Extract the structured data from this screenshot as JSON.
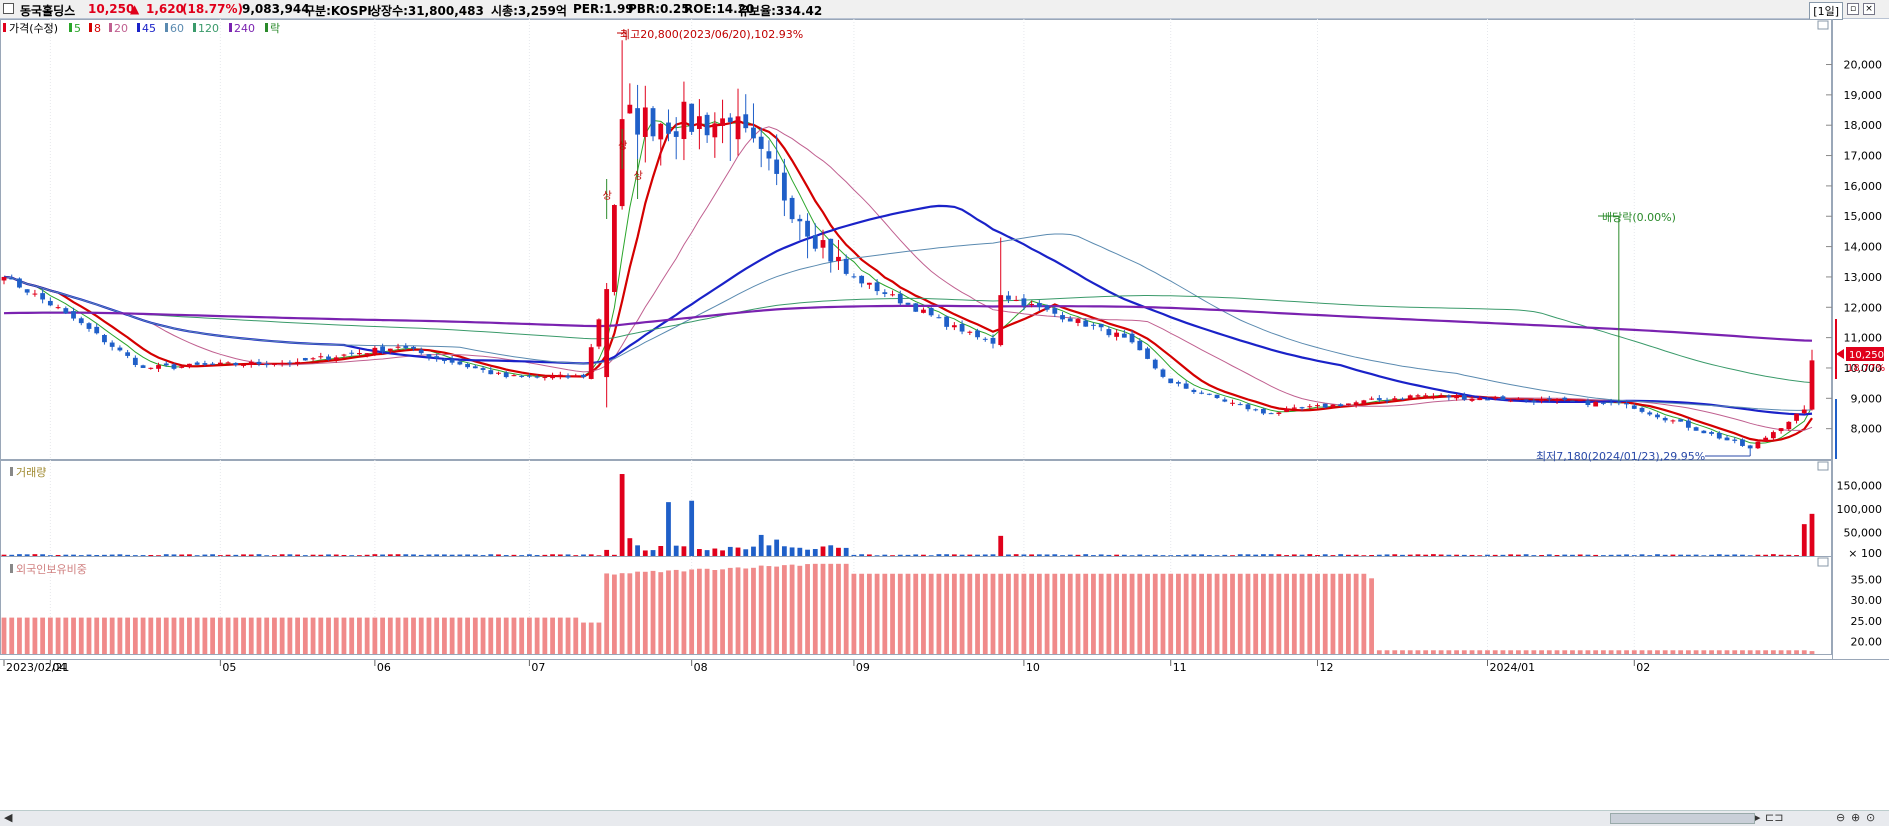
{
  "header": {
    "stock_name": "동국홀딩스",
    "price": "10,250",
    "change_arrow": "▲",
    "change": "1,620",
    "change_pct": "(18.77%)",
    "volume": "9,083,944",
    "market": "구분:KOSPI",
    "shares": "상장수:31,800,483",
    "market_cap": "시총:3,259억",
    "per": "PER:1.99",
    "pbr": "PBR:0.25",
    "roe": "ROE:14.20",
    "reserve": "유보율:334.42",
    "period": "[1일]"
  },
  "colors": {
    "up": "#e0001b",
    "down": "#1f5fc8",
    "ma5": "#2aa52a",
    "ma8": "#d40000",
    "ma20": "#c06090",
    "ma45": "#1a22c8",
    "ma60": "#5a8ab0",
    "ma120": "#3a9a6a",
    "ma240": "#7a22b0",
    "foreign": "#f08a8a",
    "dividend": "#2a8a2a"
  },
  "legend": {
    "price": {
      "label": "가격(수정)",
      "color": "#e0001b"
    },
    "ma": [
      {
        "label": "5",
        "color": "#2aa52a"
      },
      {
        "label": "8",
        "color": "#d40000"
      },
      {
        "label": "20",
        "color": "#c06090"
      },
      {
        "label": "45",
        "color": "#1a22c8"
      },
      {
        "label": "60",
        "color": "#5a8ab0"
      },
      {
        "label": "120",
        "color": "#3a9a6a"
      },
      {
        "label": "240",
        "color": "#7a22b0"
      },
      {
        "label": "락",
        "color": "#2a8a2a"
      }
    ]
  },
  "chart_data": [
    {
      "type": "candlestick",
      "title": "가격(수정)",
      "y_ticks": [
        "20,000",
        "19,000",
        "18,000",
        "17,000",
        "16,000",
        "15,000",
        "14,000",
        "13,000",
        "12,000",
        "11,000",
        "10,000",
        "9,000",
        "8,000"
      ],
      "ylim": [
        7000,
        21500
      ],
      "x_labels": [
        "2023/02/21",
        "04",
        "05",
        "06",
        "07",
        "08",
        "09",
        "10",
        "11",
        "12",
        "2024/01",
        "02"
      ],
      "ohlc_keypoints": [
        {
          "date": "2023/02/21",
          "close": 13000
        },
        {
          "date": "2023/03/06",
          "close": 11800
        },
        {
          "date": "2023/03/20",
          "close": 10000
        },
        {
          "date": "2023/04/17",
          "close": 10200
        },
        {
          "date": "2023/05/08",
          "close": 10700
        },
        {
          "date": "2023/05/26",
          "close": 9700
        },
        {
          "date": "2023/06/13",
          "close": 9700
        },
        {
          "date": "2023/06/16",
          "open": 9700,
          "close": 12600,
          "high": 12800,
          "low": 8700
        },
        {
          "date": "2023/06/20",
          "close": 18200,
          "high": 20800
        },
        {
          "date": "2023/07/10",
          "close": 18100
        },
        {
          "date": "2023/07/31",
          "close": 13100
        },
        {
          "date": "2023/08/22",
          "close": 11200
        },
        {
          "date": "2023/08/28",
          "close": 10800
        },
        {
          "date": "2023/08/29",
          "close": 12400,
          "high": 14300
        },
        {
          "date": "2023/09/20",
          "close": 11000
        },
        {
          "date": "2023/10/04",
          "close": 9500
        },
        {
          "date": "2023/10/23",
          "close": 8500
        },
        {
          "date": "2023/11/20",
          "close": 9100
        },
        {
          "date": "2023/12/28",
          "close": 8800
        },
        {
          "date": "2024/01/23",
          "close": 7350,
          "low": 7180
        },
        {
          "date": "2024/02/01",
          "close": 8630
        },
        {
          "date": "2024/02/02",
          "open": 8630,
          "close": 10250,
          "high": 10600,
          "low": 8600
        }
      ],
      "annotations": {
        "high": "최고20,800(2023/06/20),102.93%",
        "low": "최저7,180(2024/01/23),29.95%",
        "dividend": "배당락(0.00%)",
        "last_price": "10,250",
        "last_pct": "18.77%",
        "up_marks": [
          "상",
          "상",
          "상"
        ]
      }
    },
    {
      "type": "bar",
      "title": "거래량",
      "y_ticks": [
        "150,000",
        "100,000",
        "50,000",
        "× 100"
      ],
      "ylim": [
        0,
        190000
      ],
      "values_unit": "× 100",
      "keypoints": [
        {
          "date": "2023/06/16",
          "value": 13000
        },
        {
          "date": "2023/06/20",
          "value": 175000
        },
        {
          "date": "2023/06/21",
          "value": 38000
        },
        {
          "date": "2023/06/28",
          "value": 115000
        },
        {
          "date": "2023/07/03",
          "value": 118000
        },
        {
          "date": "2023/07/14",
          "value": 45000
        },
        {
          "date": "2023/07/18",
          "value": 35000
        },
        {
          "date": "2023/08/29",
          "value": 43000
        },
        {
          "date": "2024/02/01",
          "value": 68000
        },
        {
          "date": "2024/02/02",
          "value": 90000
        }
      ]
    },
    {
      "type": "bar",
      "title": "외국인보유비중",
      "y_ticks": [
        "35.00",
        "30.00",
        "25.00",
        "20.00"
      ],
      "ylim": [
        17,
        39
      ],
      "keypoints": [
        {
          "date": "2023/02/21",
          "value": 25.8
        },
        {
          "date": "2023/06/13",
          "value": 24.6
        },
        {
          "date": "2023/06/16",
          "value": 36.3
        },
        {
          "date": "2023/07/25",
          "value": 38.8
        },
        {
          "date": "2023/08/01",
          "value": 36.4
        },
        {
          "date": "2023/11/10",
          "value": 35.3
        },
        {
          "date": "2023/11/13",
          "value": 17.9
        },
        {
          "date": "2024/02/02",
          "value": 17.7
        }
      ]
    }
  ]
}
